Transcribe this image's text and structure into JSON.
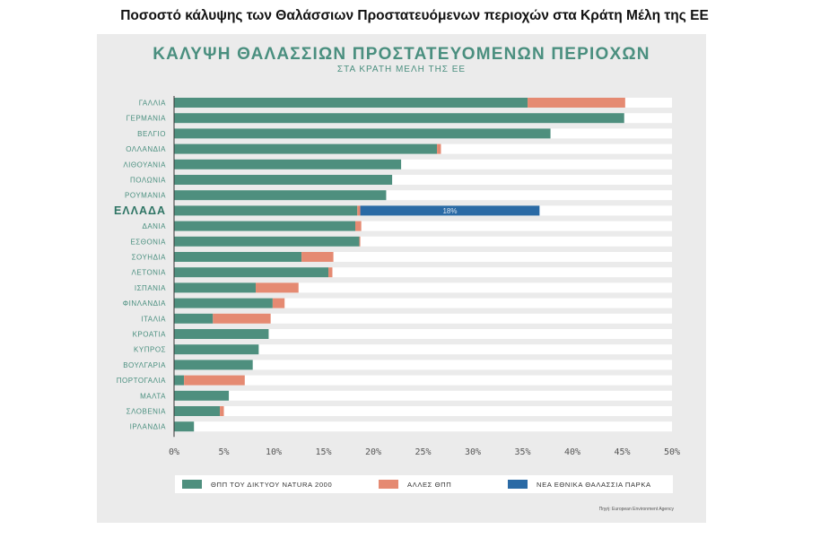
{
  "page": {
    "heading": "Ποσοστό κάλυψης των Θαλάσσιων Προστατευόμενων περιοχών στα Κράτη Μέλη της ΕΕ"
  },
  "source": "Πηγή: European Environment Agency",
  "colors": {
    "natura": "#4e8f7e",
    "other": "#e58a72",
    "park": "#2a6aa5",
    "title": "#4a8f7f",
    "panel": "#ebebeb"
  },
  "legend": {
    "natura": "ΘΠΠ ΤΟΥ ΔΙΚΤΥΟΥ NATURA 2000",
    "other": "ΑΛΛΕΣ ΘΠΠ",
    "park": "ΝΕΑ ΕΘΝΙΚΑ ΘΑΛΑΣΣΙΑ ΠΑΡΚΑ"
  },
  "chart_data": {
    "type": "bar",
    "orientation": "horizontal",
    "stacked": true,
    "title": "ΚΑΛΥΨΗ ΘΑΛΑΣΣΙΩΝ ΠΡΟΣΤΑΤΕΥΟΜΕΝΩΝ ΠΕΡΙΟΧΩΝ",
    "subtitle": "ΣΤΑ ΚΡΑΤΗ ΜΕΛΗ ΤΗΣ ΕΕ",
    "xlabel": "",
    "ylabel": "",
    "xlim": [
      0,
      50
    ],
    "xticks": [
      "0%",
      "5%",
      "10%",
      "15%",
      "20%",
      "25%",
      "30%",
      "35%",
      "40%",
      "45%",
      "50%"
    ],
    "highlight": "ΕΛΛΑΔΑ",
    "categories": [
      "ΓΑΛΛΙΑ",
      "ΓΕΡΜΑΝΙΑ",
      "ΒΕΛΓΙΟ",
      "ΟΛΛΑΝΔΙΑ",
      "ΛΙΘΟΥΑΝΙΑ",
      "ΠΟΛΩΝΙΑ",
      "ΡΟΥΜΑΝΙΑ",
      "ΕΛΛΑΔΑ",
      "ΔΑΝΙΑ",
      "ΕΣΘΟΝΙΑ",
      "ΣΟΥΗΔΙΑ",
      "ΛΕΤΟΝΙΑ",
      "ΙΣΠΑΝΙΑ",
      "ΦΙΝΛΑΝΔΙΑ",
      "ΙΤΑΛΙΑ",
      "ΚΡΟΑΤΙΑ",
      "ΚΥΠΡΟΣ",
      "ΒΟΥΛΓΑΡΙΑ",
      "ΠΟΡΤΟΓΑΛΙΑ",
      "ΜΑΛΤΑ",
      "ΣΛΟΒΕΝΙΑ",
      "ΙΡΛΑΝΔΙΑ"
    ],
    "series": [
      {
        "name": "ΘΠΠ ΤΟΥ ΔΙΚΤΥΟΥ NATURA 2000",
        "values": [
          35.5,
          45.2,
          37.8,
          26.4,
          22.8,
          21.9,
          21.3,
          18.4,
          18.2,
          18.6,
          12.8,
          15.5,
          8.2,
          9.9,
          3.9,
          9.5,
          8.5,
          7.9,
          1.0,
          5.5,
          4.6,
          2.0
        ]
      },
      {
        "name": "ΑΛΛΕΣ ΘΠΠ",
        "values": [
          9.8,
          0,
          0,
          0.4,
          0,
          0,
          0,
          0.3,
          0.6,
          0.1,
          3.2,
          0.4,
          4.3,
          1.2,
          5.8,
          0,
          0,
          0,
          6.1,
          0,
          0.4,
          0
        ]
      },
      {
        "name": "ΝΕΑ ΕΘΝΙΚΑ ΘΑΛΑΣΣΙΑ ΠΑΡΚΑ",
        "values": [
          0,
          0,
          0,
          0,
          0,
          0,
          0,
          18.0,
          0,
          0,
          0,
          0,
          0,
          0,
          0,
          0,
          0,
          0,
          0,
          0,
          0,
          0
        ]
      }
    ],
    "data_labels": [
      {
        "category": "ΕΛΛΑΔΑ",
        "series": "ΝΕΑ ΕΘΝΙΚΑ ΘΑΛΑΣΣΙΑ ΠΑΡΚΑ",
        "text": "18%"
      }
    ]
  }
}
